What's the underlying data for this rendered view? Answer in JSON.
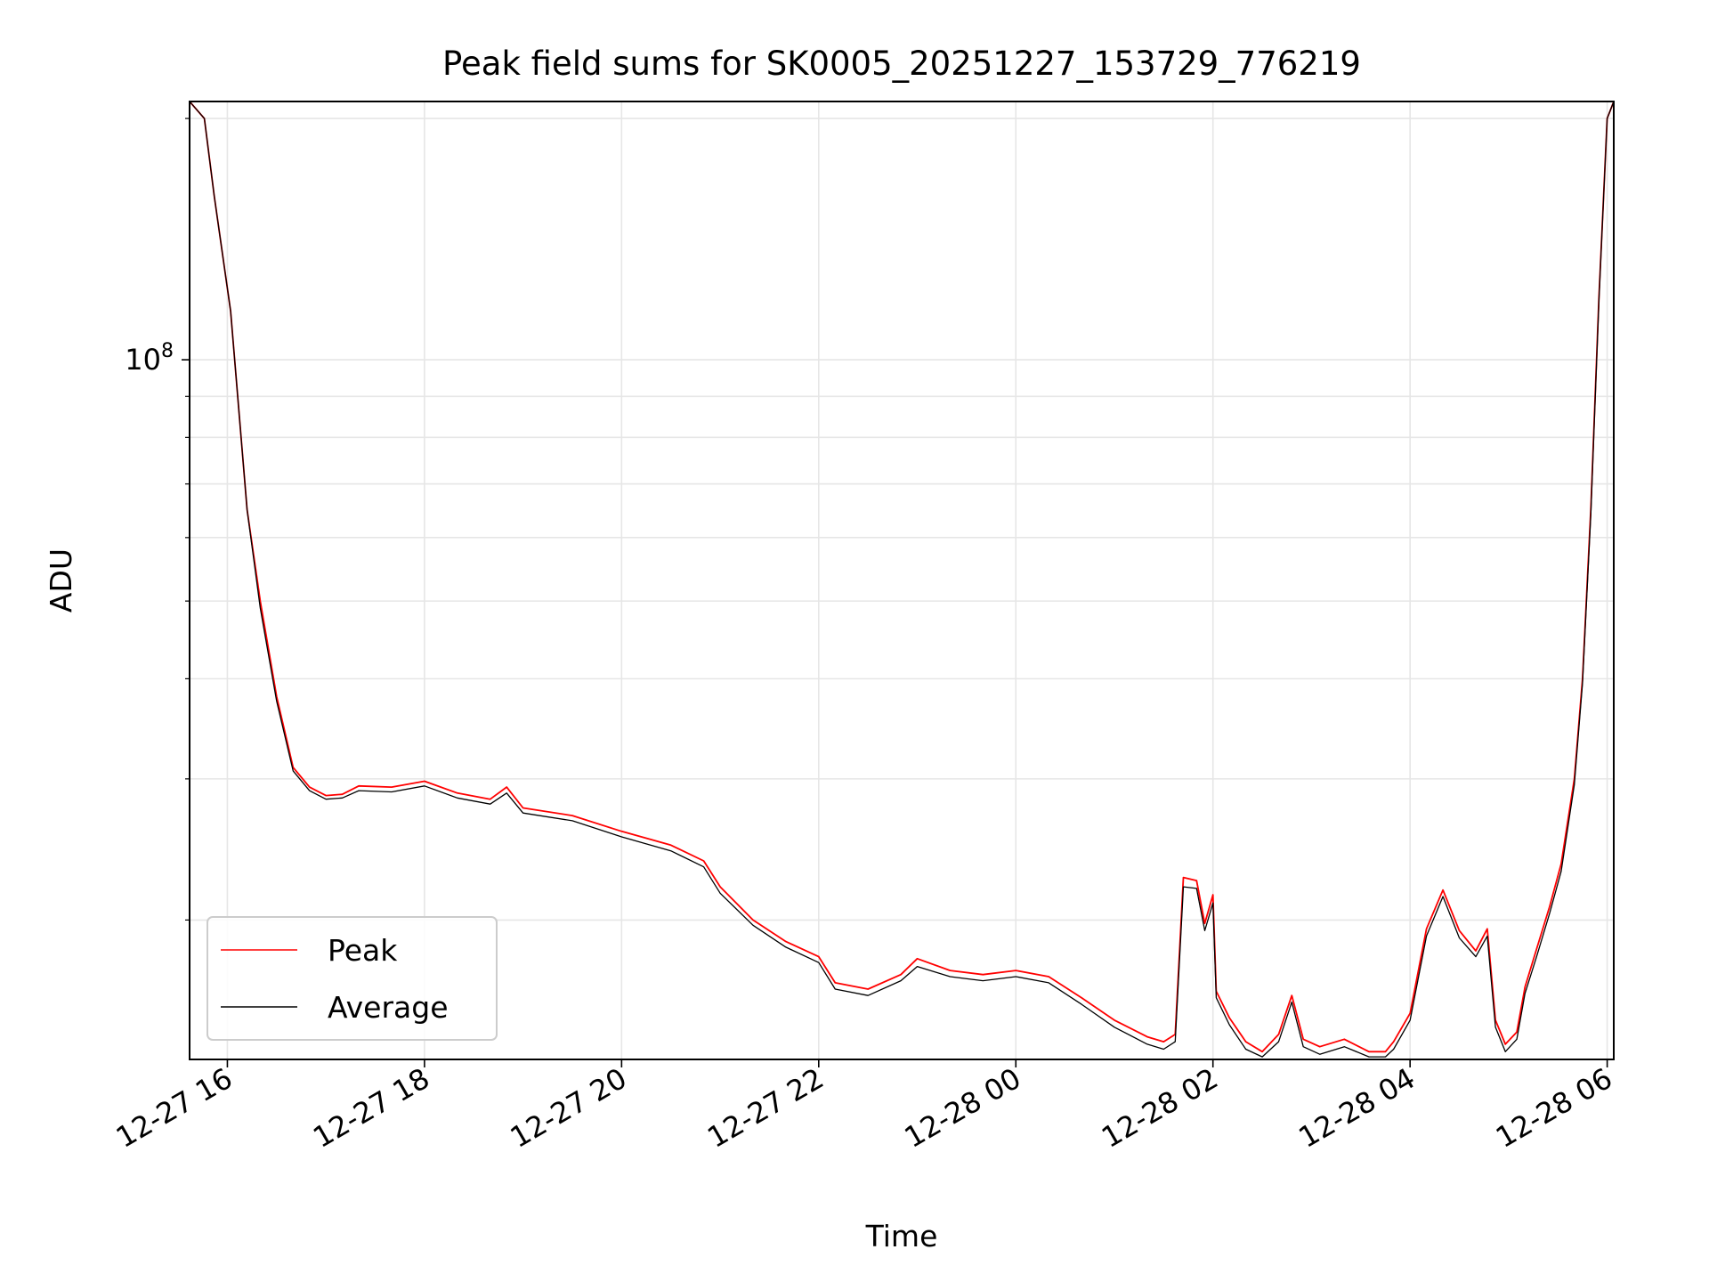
{
  "chart_data": {
    "type": "line",
    "title": "Peak field sums for SK0005_20251227_153729_776219",
    "xlabel": "Time",
    "ylabel": "ADU",
    "y_scale": "log",
    "grid": true,
    "legend_position": "lower-left",
    "x_tick_labels": [
      "12-27 16",
      "12-27 18",
      "12-27 20",
      "12-27 22",
      "12-28 00",
      "12-28 02",
      "12-28 04",
      "12-28 06"
    ],
    "y_tick_labels": [
      {
        "base": "10",
        "exp": "8"
      }
    ],
    "x_range": [
      "2025-12-27 15:37",
      "2025-12-28 06:04"
    ],
    "y_range": [
      13400000,
      210000000
    ],
    "series": [
      {
        "name": "Peak",
        "color": "#ff0000",
        "points": [
          [
            "2025-12-27 15:37",
            210000000
          ],
          [
            "2025-12-27 15:46",
            200000000
          ],
          [
            "2025-12-27 15:52",
            160000000
          ],
          [
            "2025-12-27 16:02",
            115000000
          ],
          [
            "2025-12-27 16:12",
            65000000
          ],
          [
            "2025-12-27 16:20",
            50000000
          ],
          [
            "2025-12-27 16:30",
            38000000
          ],
          [
            "2025-12-27 16:40",
            31000000
          ],
          [
            "2025-12-27 16:50",
            29300000
          ],
          [
            "2025-12-27 17:00",
            28600000
          ],
          [
            "2025-12-27 17:10",
            28700000
          ],
          [
            "2025-12-27 17:20",
            29400000
          ],
          [
            "2025-12-27 17:40",
            29300000
          ],
          [
            "2025-12-27 18:00",
            29800000
          ],
          [
            "2025-12-27 18:20",
            28800000
          ],
          [
            "2025-12-27 18:40",
            28300000
          ],
          [
            "2025-12-27 18:50",
            29300000
          ],
          [
            "2025-12-27 19:00",
            27600000
          ],
          [
            "2025-12-27 19:30",
            27000000
          ],
          [
            "2025-12-27 20:00",
            25800000
          ],
          [
            "2025-12-27 20:30",
            24800000
          ],
          [
            "2025-12-27 20:50",
            23700000
          ],
          [
            "2025-12-27 21:00",
            22000000
          ],
          [
            "2025-12-27 21:20",
            20000000
          ],
          [
            "2025-12-27 21:40",
            18800000
          ],
          [
            "2025-12-27 22:00",
            18000000
          ],
          [
            "2025-12-27 22:10",
            16700000
          ],
          [
            "2025-12-27 22:30",
            16400000
          ],
          [
            "2025-12-27 22:50",
            17100000
          ],
          [
            "2025-12-27 23:00",
            17900000
          ],
          [
            "2025-12-27 23:20",
            17300000
          ],
          [
            "2025-12-27 23:40",
            17100000
          ],
          [
            "2025-12-28 00:00",
            17300000
          ],
          [
            "2025-12-28 00:20",
            17000000
          ],
          [
            "2025-12-28 00:40",
            16000000
          ],
          [
            "2025-12-28 01:00",
            15000000
          ],
          [
            "2025-12-28 01:20",
            14300000
          ],
          [
            "2025-12-28 01:30",
            14100000
          ],
          [
            "2025-12-28 01:37",
            14400000
          ],
          [
            "2025-12-28 01:42",
            22600000
          ],
          [
            "2025-12-28 01:50",
            22400000
          ],
          [
            "2025-12-28 01:55",
            19800000
          ],
          [
            "2025-12-28 02:00",
            21500000
          ],
          [
            "2025-12-28 02:02",
            16300000
          ],
          [
            "2025-12-28 02:10",
            15100000
          ],
          [
            "2025-12-28 02:20",
            14100000
          ],
          [
            "2025-12-28 02:30",
            13700000
          ],
          [
            "2025-12-28 02:40",
            14400000
          ],
          [
            "2025-12-28 02:48",
            16100000
          ],
          [
            "2025-12-28 02:55",
            14200000
          ],
          [
            "2025-12-28 03:05",
            13900000
          ],
          [
            "2025-12-28 03:20",
            14200000
          ],
          [
            "2025-12-28 03:35",
            13700000
          ],
          [
            "2025-12-28 03:45",
            13700000
          ],
          [
            "2025-12-28 03:50",
            14100000
          ],
          [
            "2025-12-28 04:00",
            15300000
          ],
          [
            "2025-12-28 04:10",
            19500000
          ],
          [
            "2025-12-28 04:20",
            21800000
          ],
          [
            "2025-12-28 04:30",
            19400000
          ],
          [
            "2025-12-28 04:40",
            18300000
          ],
          [
            "2025-12-28 04:47",
            19500000
          ],
          [
            "2025-12-28 04:52",
            15000000
          ],
          [
            "2025-12-28 04:58",
            14000000
          ],
          [
            "2025-12-28 05:05",
            14500000
          ],
          [
            "2025-12-28 05:10",
            16500000
          ],
          [
            "2025-12-28 05:17",
            18400000
          ],
          [
            "2025-12-28 05:25",
            20800000
          ],
          [
            "2025-12-28 05:32",
            23500000
          ],
          [
            "2025-12-28 05:40",
            30000000
          ],
          [
            "2025-12-28 05:45",
            40000000
          ],
          [
            "2025-12-28 05:50",
            65000000
          ],
          [
            "2025-12-28 05:55",
            120000000
          ],
          [
            "2025-12-28 06:00",
            200000000
          ],
          [
            "2025-12-28 06:04",
            210000000
          ]
        ]
      },
      {
        "name": "Average",
        "color": "#000000",
        "points": [
          [
            "2025-12-27 15:37",
            210000000
          ],
          [
            "2025-12-27 15:46",
            200000000
          ],
          [
            "2025-12-27 15:52",
            160000000
          ],
          [
            "2025-12-27 16:02",
            115000000
          ],
          [
            "2025-12-27 16:12",
            65000000
          ],
          [
            "2025-12-27 16:20",
            49000000
          ],
          [
            "2025-12-27 16:30",
            37500000
          ],
          [
            "2025-12-27 16:40",
            30700000
          ],
          [
            "2025-12-27 16:50",
            29000000
          ],
          [
            "2025-12-27 17:00",
            28300000
          ],
          [
            "2025-12-27 17:10",
            28400000
          ],
          [
            "2025-12-27 17:20",
            29000000
          ],
          [
            "2025-12-27 17:40",
            28900000
          ],
          [
            "2025-12-27 18:00",
            29400000
          ],
          [
            "2025-12-27 18:20",
            28400000
          ],
          [
            "2025-12-27 18:40",
            27900000
          ],
          [
            "2025-12-27 18:50",
            28800000
          ],
          [
            "2025-12-27 19:00",
            27200000
          ],
          [
            "2025-12-27 19:30",
            26600000
          ],
          [
            "2025-12-27 20:00",
            25400000
          ],
          [
            "2025-12-27 20:30",
            24400000
          ],
          [
            "2025-12-27 20:50",
            23300000
          ],
          [
            "2025-12-27 21:00",
            21600000
          ],
          [
            "2025-12-27 21:20",
            19700000
          ],
          [
            "2025-12-27 21:40",
            18500000
          ],
          [
            "2025-12-27 22:00",
            17700000
          ],
          [
            "2025-12-27 22:10",
            16400000
          ],
          [
            "2025-12-27 22:30",
            16100000
          ],
          [
            "2025-12-27 22:50",
            16800000
          ],
          [
            "2025-12-27 23:00",
            17500000
          ],
          [
            "2025-12-27 23:20",
            17000000
          ],
          [
            "2025-12-27 23:40",
            16800000
          ],
          [
            "2025-12-28 00:00",
            17000000
          ],
          [
            "2025-12-28 00:20",
            16700000
          ],
          [
            "2025-12-28 00:40",
            15700000
          ],
          [
            "2025-12-28 01:00",
            14700000
          ],
          [
            "2025-12-28 01:20",
            14000000
          ],
          [
            "2025-12-28 01:30",
            13800000
          ],
          [
            "2025-12-28 01:37",
            14100000
          ],
          [
            "2025-12-28 01:42",
            22000000
          ],
          [
            "2025-12-28 01:50",
            21900000
          ],
          [
            "2025-12-28 01:55",
            19400000
          ],
          [
            "2025-12-28 02:00",
            21000000
          ],
          [
            "2025-12-28 02:02",
            16000000
          ],
          [
            "2025-12-28 02:10",
            14800000
          ],
          [
            "2025-12-28 02:20",
            13800000
          ],
          [
            "2025-12-28 02:30",
            13500000
          ],
          [
            "2025-12-28 02:40",
            14100000
          ],
          [
            "2025-12-28 02:48",
            15800000
          ],
          [
            "2025-12-28 02:55",
            13900000
          ],
          [
            "2025-12-28 03:05",
            13600000
          ],
          [
            "2025-12-28 03:20",
            13900000
          ],
          [
            "2025-12-28 03:35",
            13500000
          ],
          [
            "2025-12-28 03:45",
            13500000
          ],
          [
            "2025-12-28 03:50",
            13800000
          ],
          [
            "2025-12-28 04:00",
            15000000
          ],
          [
            "2025-12-28 04:10",
            19100000
          ],
          [
            "2025-12-28 04:20",
            21400000
          ],
          [
            "2025-12-28 04:30",
            19000000
          ],
          [
            "2025-12-28 04:40",
            18000000
          ],
          [
            "2025-12-28 04:47",
            19100000
          ],
          [
            "2025-12-28 04:52",
            14700000
          ],
          [
            "2025-12-28 04:58",
            13700000
          ],
          [
            "2025-12-28 05:05",
            14200000
          ],
          [
            "2025-12-28 05:10",
            16200000
          ],
          [
            "2025-12-28 05:17",
            18000000
          ],
          [
            "2025-12-28 05:25",
            20400000
          ],
          [
            "2025-12-28 05:32",
            23000000
          ],
          [
            "2025-12-28 05:40",
            29500000
          ],
          [
            "2025-12-28 05:45",
            39500000
          ],
          [
            "2025-12-28 05:50",
            64000000
          ],
          [
            "2025-12-28 05:55",
            119000000
          ],
          [
            "2025-12-28 06:00",
            200000000
          ],
          [
            "2025-12-28 06:04",
            210000000
          ]
        ]
      }
    ]
  }
}
